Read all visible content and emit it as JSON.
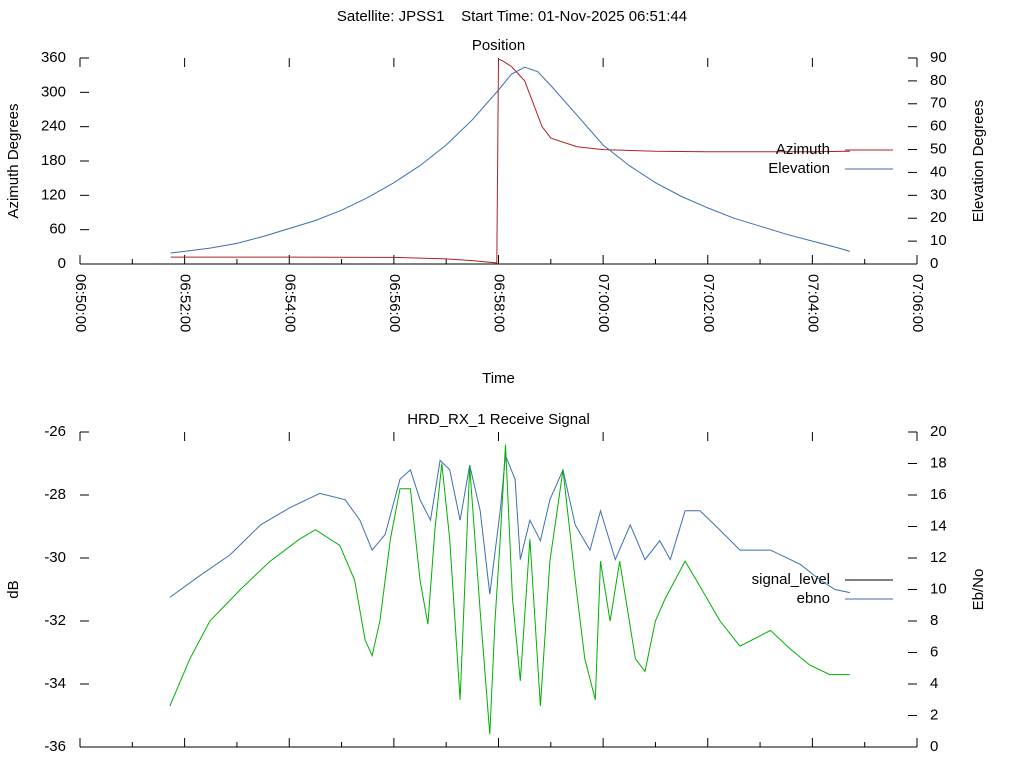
{
  "title": "Satellite: JPSS1    Start Time: 01-Nov-2025 06:51:44",
  "chart_data": [
    {
      "type": "line",
      "title": "Position",
      "xlabel": "Time",
      "ylabel": "Azimuth Degrees",
      "y2label": "Elevation Degrees",
      "xlim": [
        "06:50:00",
        "07:06:00"
      ],
      "xticks": [
        "06:50:00",
        "06:52:00",
        "06:54:00",
        "06:56:00",
        "06:58:00",
        "07:00:00",
        "07:02:00",
        "07:04:00",
        "07:06:00"
      ],
      "xticklabels": true,
      "ylim": [
        0,
        360
      ],
      "yticks": [
        0,
        60,
        120,
        180,
        240,
        300,
        360
      ],
      "y2lim": [
        0,
        90
      ],
      "y2ticks": [
        0,
        10,
        20,
        30,
        40,
        50,
        60,
        70,
        80,
        90
      ],
      "legend": "right",
      "series": [
        {
          "name": "Azimuth",
          "color": "#b22222",
          "axis": "y",
          "x": [
            "06:51:44",
            "06:54:00",
            "06:56:00",
            "06:57:00",
            "06:57:30",
            "06:57:58",
            "06:58:00",
            "06:58:05",
            "06:58:15",
            "06:58:30",
            "06:58:40",
            "06:58:50",
            "06:59:00",
            "06:59:30",
            "07:00:00",
            "07:01:00",
            "07:02:00",
            "07:03:00",
            "07:04:00",
            "07:04:43"
          ],
          "values": [
            12,
            12,
            11.5,
            9,
            6,
            2,
            358,
            355,
            345,
            320,
            280,
            240,
            220,
            205,
            200,
            197,
            196,
            196,
            196,
            197
          ]
        },
        {
          "name": "Elevation",
          "color": "#3c6eb4",
          "axis": "y2",
          "x": [
            "06:51:44",
            "06:52:00",
            "06:52:30",
            "06:53:00",
            "06:53:30",
            "06:54:00",
            "06:54:30",
            "06:55:00",
            "06:55:30",
            "06:56:00",
            "06:56:30",
            "06:57:00",
            "06:57:30",
            "06:58:00",
            "06:58:15",
            "06:58:30",
            "06:58:45",
            "06:59:00",
            "06:59:30",
            "07:00:00",
            "07:00:30",
            "07:01:00",
            "07:01:30",
            "07:02:00",
            "07:02:30",
            "07:03:00",
            "07:03:30",
            "07:04:00",
            "07:04:30",
            "07:04:43"
          ],
          "values": [
            4.8,
            5.5,
            7,
            9,
            12,
            15.5,
            19,
            23.5,
            29,
            35.5,
            43,
            52,
            63,
            76,
            83,
            86,
            84,
            78,
            65,
            52,
            43,
            35.5,
            29.5,
            24.5,
            20,
            16.5,
            13,
            10,
            7,
            5.5
          ]
        }
      ]
    },
    {
      "type": "line",
      "title": "HRD_RX_1 Receive Signal",
      "ylabel": "dB",
      "y2label": "Eb/No",
      "xlim": [
        "06:50:00",
        "07:06:00"
      ],
      "xticks": [
        "06:50:00",
        "06:52:00",
        "06:54:00",
        "06:56:00",
        "06:58:00",
        "07:00:00",
        "07:02:00",
        "07:04:00",
        "07:06:00"
      ],
      "xticklabels": false,
      "ylim": [
        -36,
        -26
      ],
      "yticks": [
        -36,
        -34,
        -32,
        -30,
        -28,
        -26
      ],
      "y2lim": [
        0,
        20
      ],
      "y2ticks": [
        0,
        2,
        4,
        6,
        8,
        10,
        12,
        14,
        16,
        18,
        20
      ],
      "legend": "right",
      "series": [
        {
          "name": "signal_level",
          "color": "#000000",
          "axis": "y",
          "x": [],
          "values": []
        },
        {
          "name": "ebno",
          "color": "#3c6eb4",
          "axis": "y2",
          "x": [
            "06:51:43",
            "06:52:18",
            "06:52:52",
            "06:53:27",
            "06:54:01",
            "06:54:35",
            "06:55:04",
            "06:55:21",
            "06:55:35",
            "06:55:50",
            "06:56:07",
            "06:56:19",
            "06:56:30",
            "06:56:42",
            "06:56:53",
            "06:57:04",
            "06:57:16",
            "06:57:27",
            "06:57:39",
            "06:57:50",
            "06:58:02",
            "06:58:08",
            "06:58:19",
            "06:58:25",
            "06:58:36",
            "06:58:48",
            "06:58:59",
            "06:59:14",
            "06:59:28",
            "06:59:45",
            "06:59:57",
            "07:00:14",
            "07:00:31",
            "07:00:48",
            "07:01:05",
            "07:01:17",
            "07:01:34",
            "07:01:51",
            "07:02:08",
            "07:02:37",
            "07:03:12",
            "07:03:46",
            "07:04:09",
            "07:04:26",
            "07:04:43"
          ],
          "values": [
            9.5,
            10.9,
            12.2,
            14.1,
            15.2,
            16.1,
            15.7,
            14.4,
            12.5,
            13.5,
            17.0,
            17.6,
            15.7,
            14.4,
            18.2,
            17.6,
            14.4,
            17.9,
            15.0,
            9.7,
            15.0,
            18.5,
            17.0,
            11.9,
            14.4,
            13.1,
            15.7,
            17.6,
            14.1,
            12.5,
            15.0,
            11.9,
            14.1,
            11.9,
            13.1,
            11.9,
            15.0,
            15.0,
            14.1,
            12.5,
            12.5,
            11.6,
            10.6,
            10.0,
            9.8
          ]
        },
        {
          "color": "#00b000",
          "axis": "y",
          "x": [
            "06:51:43",
            "06:52:06",
            "06:52:29",
            "06:53:04",
            "06:53:38",
            "06:54:12",
            "06:54:30",
            "06:54:58",
            "06:55:15",
            "06:55:27",
            "06:55:35",
            "06:55:44",
            "06:55:56",
            "06:56:07",
            "06:56:19",
            "06:56:30",
            "06:56:39",
            "06:56:47",
            "06:56:55",
            "06:57:04",
            "06:57:16",
            "06:57:27",
            "06:57:39",
            "06:57:50",
            "06:57:56",
            "06:58:02",
            "06:58:08",
            "06:58:16",
            "06:58:25",
            "06:58:36",
            "06:58:48",
            "06:58:59",
            "06:59:14",
            "06:59:28",
            "06:59:39",
            "06:59:51",
            "06:59:57",
            "07:00:08",
            "07:00:19",
            "07:00:37",
            "07:00:48",
            "07:01:00",
            "07:01:11",
            "07:01:34",
            "07:01:51",
            "07:02:14",
            "07:02:37",
            "07:03:12",
            "07:03:35",
            "07:03:57",
            "07:04:20",
            "07:04:43"
          ],
          "values": [
            -34.7,
            -33.2,
            -32.0,
            -31.0,
            -30.1,
            -29.4,
            -29.1,
            -29.6,
            -30.7,
            -32.6,
            -33.1,
            -32.0,
            -29.4,
            -27.8,
            -27.8,
            -30.7,
            -32.1,
            -29.1,
            -27.0,
            -29.4,
            -34.5,
            -27.1,
            -31.7,
            -35.6,
            -32.0,
            -29.4,
            -26.4,
            -31.3,
            -33.9,
            -29.4,
            -34.7,
            -30.1,
            -27.2,
            -30.7,
            -33.2,
            -34.5,
            -30.1,
            -32.0,
            -30.1,
            -33.2,
            -33.6,
            -32.0,
            -31.3,
            -30.1,
            -30.9,
            -32.0,
            -32.8,
            -32.3,
            -32.9,
            -33.4,
            -33.7,
            -33.7
          ]
        }
      ]
    }
  ]
}
